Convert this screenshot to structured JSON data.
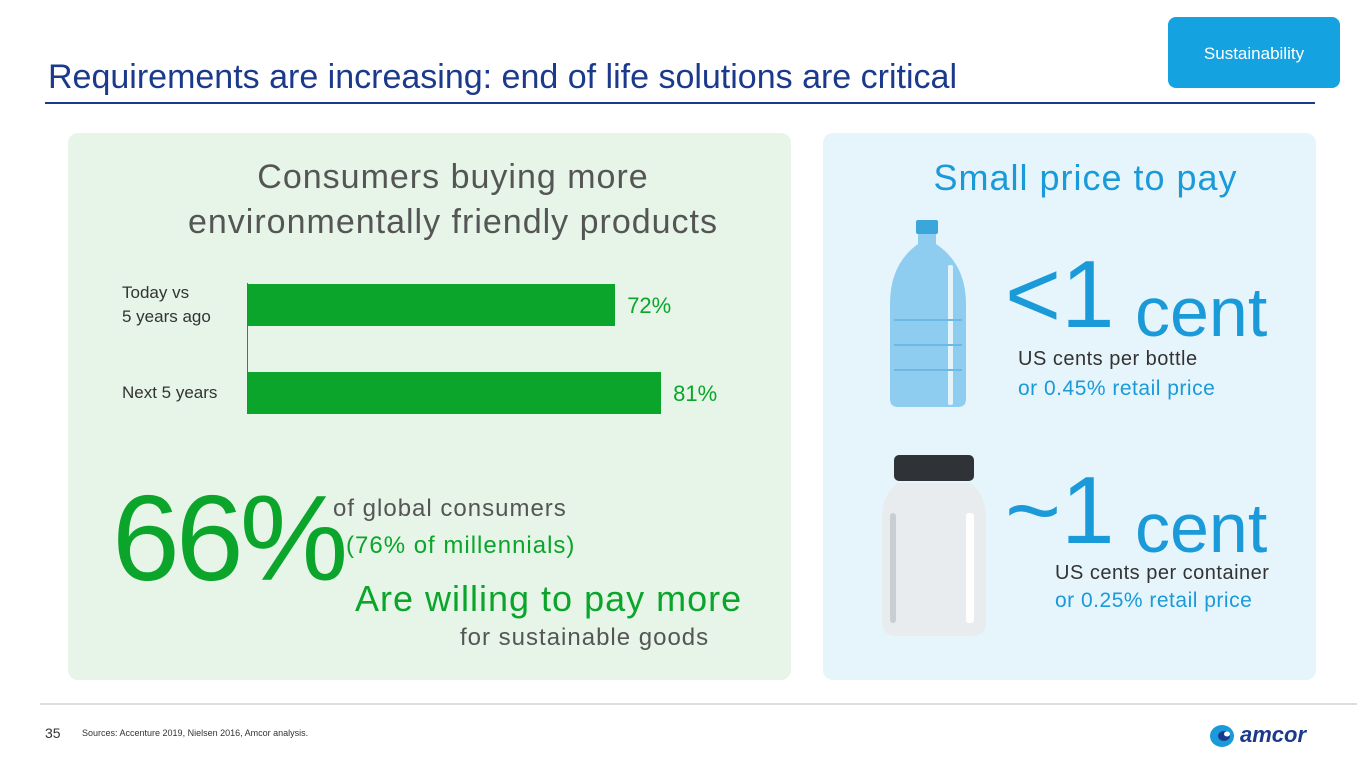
{
  "header": {
    "tag": "Sustainability",
    "title": "Requirements are increasing: end of life solutions are critical"
  },
  "left_panel": {
    "title_lines": [
      "Consumers buying more",
      "environmentally friendly products"
    ]
  },
  "chart_data": {
    "type": "bar",
    "orientation": "horizontal",
    "categories": [
      "Today vs\n5 years ago",
      "Next 5 years"
    ],
    "values": [
      72,
      81
    ],
    "value_labels": [
      "72%",
      "81%"
    ],
    "color": "#0aa52a"
  },
  "stat": {
    "value": "66%",
    "line1": "of global consumers",
    "line2": "(76% of millennials)",
    "headline": "Are willing to pay more",
    "subline": "for sustainable goods"
  },
  "right_panel": {
    "title": "Small price to pay",
    "items": [
      {
        "amount": "<1",
        "unit": "cent",
        "line1": "US cents per bottle",
        "line2": "or 0.45% retail price"
      },
      {
        "amount": "~1",
        "unit": "cent",
        "line1": "US cents per container",
        "line2": "or 0.25% retail price"
      }
    ]
  },
  "footer": {
    "page": "35",
    "source": "Sources: Accenture 2019, Nielsen 2016, Amcor analysis.",
    "logo": "amcor"
  }
}
